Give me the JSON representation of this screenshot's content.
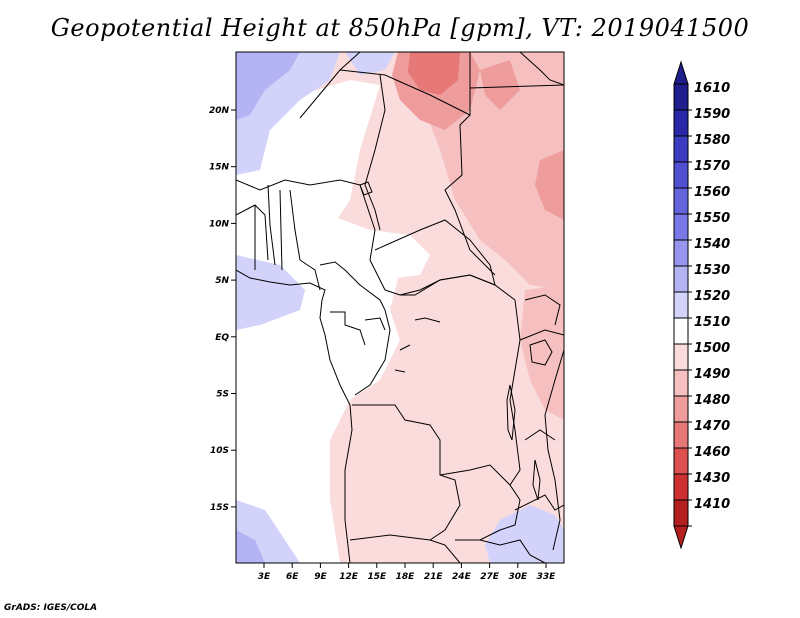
{
  "title": "Geopotential Height at 850hPa [gpm], VT: 2019041500",
  "credit": "GrADS: IGES/COLA",
  "map": {
    "x_ticks": [
      "3E",
      "6E",
      "9E",
      "12E",
      "15E",
      "18E",
      "21E",
      "24E",
      "27E",
      "30E",
      "33E"
    ],
    "y_ticks": [
      "20N",
      "15N",
      "10N",
      "5N",
      "EQ",
      "5S",
      "10S",
      "15S"
    ]
  },
  "colorbar": {
    "levels": [
      "1610",
      "1590",
      "1580",
      "1570",
      "1560",
      "1550",
      "1540",
      "1530",
      "1520",
      "1510",
      "1500",
      "1490",
      "1480",
      "1470",
      "1460",
      "1430",
      "1410"
    ],
    "colors": [
      "#1e1e8c",
      "#2828a8",
      "#3c3cc0",
      "#5050d2",
      "#6464dc",
      "#7878e6",
      "#9696ee",
      "#b4b4f4",
      "#d2d2fa",
      "#ffffff",
      "#fbdcdc",
      "#f6c0c0",
      "#ee9c9c",
      "#e67878",
      "#dc5050",
      "#cc3030",
      "#b42020"
    ],
    "top_color": "#1e1e8c",
    "bottom_color": "#b42020"
  },
  "field_colors": {
    "deep_blue": "#b4b4f4",
    "light_blue": "#d2d2fa",
    "white": "#ffffff",
    "light_pink": "#fbdcdc",
    "pink": "#f6c0c0",
    "rose": "#ee9c9c",
    "red": "#e67878"
  }
}
